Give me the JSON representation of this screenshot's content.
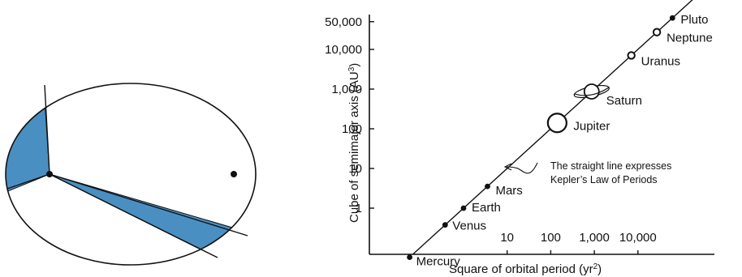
{
  "colors": {
    "sector_fill": "#4a8fc2",
    "ink": "#111111",
    "background": "#ffffff"
  },
  "chart_data": [
    {
      "type": "diagram",
      "description_elements": [
        "ellipse-orbit",
        "sun-focus",
        "empty-focus",
        "swept-area-left",
        "swept-area-long"
      ]
    },
    {
      "type": "scatter",
      "title": "",
      "xlabel_prefix": "Square of orbital period (yr",
      "xlabel_sup": "2",
      "xlabel_suffix": ")",
      "ylabel_prefix": "Cube of semimajor axis (AU",
      "ylabel_sup": "3",
      "ylabel_suffix": ")",
      "x_scale": "log",
      "y_scale": "log",
      "x_range": [
        0.03,
        130000
      ],
      "y_range": [
        0.03,
        130000
      ],
      "x_ticks": [
        {
          "value": 10,
          "label": "10"
        },
        {
          "value": 100,
          "label": "100"
        },
        {
          "value": 1000,
          "label": "1,000"
        },
        {
          "value": 10000,
          "label": "10,000"
        }
      ],
      "y_ticks": [
        {
          "value": 1,
          "label": "1"
        },
        {
          "value": 10,
          "label": "10"
        },
        {
          "value": 100,
          "label": "100"
        },
        {
          "value": 1000,
          "label": "1,000"
        },
        {
          "value": 10000,
          "label": "10,000"
        },
        {
          "value": 50000,
          "label": "50,000"
        }
      ],
      "points": [
        {
          "name": "Mercury",
          "x": 0.058,
          "y": 0.058,
          "marker": "dot"
        },
        {
          "name": "Venus",
          "x": 0.378,
          "y": 0.378,
          "marker": "dot"
        },
        {
          "name": "Earth",
          "x": 1,
          "y": 1,
          "marker": "dot"
        },
        {
          "name": "Mars",
          "x": 3.54,
          "y": 3.54,
          "marker": "dot"
        },
        {
          "name": "Jupiter",
          "x": 140.7,
          "y": 140.7,
          "marker": "big-circle"
        },
        {
          "name": "Saturn",
          "x": 867.9,
          "y": 867.9,
          "marker": "ringed"
        },
        {
          "name": "Uranus",
          "x": 7058,
          "y": 7058,
          "marker": "open-circle"
        },
        {
          "name": "Neptune",
          "x": 27160,
          "y": 27160,
          "marker": "open-circle"
        },
        {
          "name": "Pluto",
          "x": 61900,
          "y": 61900,
          "marker": "dot"
        }
      ],
      "fit_line": "y = x",
      "annotation_lines": [
        "The straight line expresses",
        "Kepler’s Law of Periods"
      ]
    }
  ]
}
